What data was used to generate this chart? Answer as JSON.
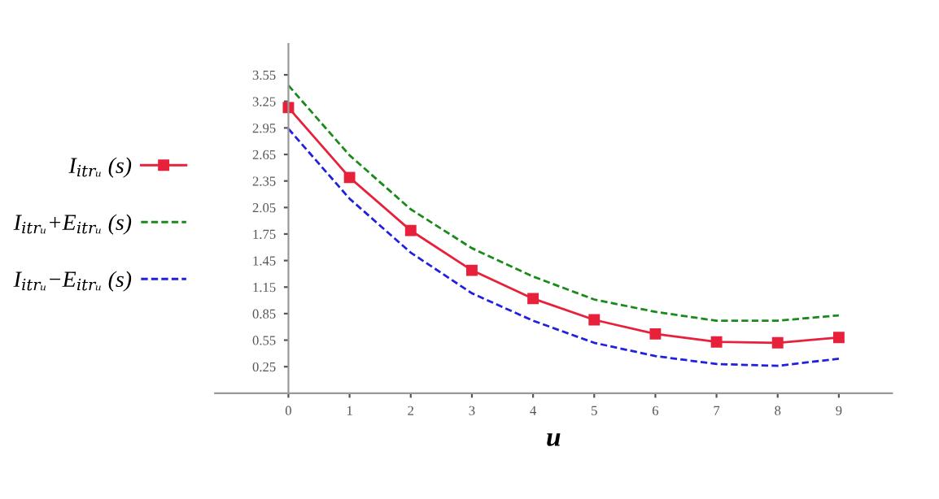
{
  "chart_data": {
    "type": "line",
    "xlabel": "u",
    "legend": "left",
    "grid": false,
    "x": [
      0,
      1,
      2,
      3,
      4,
      5,
      6,
      7,
      8,
      9
    ],
    "xlim": [
      -1.2,
      9.87
    ],
    "xticks": [
      0,
      1,
      2,
      3,
      4,
      5,
      6,
      7,
      8,
      9
    ],
    "ylim": [
      -0.05,
      3.9
    ],
    "yticks": [
      0.25,
      0.55,
      0.85,
      1.15,
      1.45,
      1.75,
      2.05,
      2.35,
      2.65,
      2.95,
      3.25,
      3.55
    ],
    "series": [
      {
        "name": "I$_{itrᵤ}$ (s)",
        "color": "#e8213a",
        "marker": "square",
        "line_style": "solid",
        "values": [
          3.18,
          2.39,
          1.79,
          1.34,
          1.02,
          0.78,
          0.62,
          0.53,
          0.52,
          0.58
        ]
      },
      {
        "name": "I$_{itrᵤ}$+E$_{itrᵤ}$ (s)",
        "color": "#1a8a1a",
        "marker": "none",
        "line_style": "dashed",
        "values": [
          3.43,
          2.64,
          2.03,
          1.59,
          1.27,
          1.01,
          0.87,
          0.77,
          0.77,
          0.83
        ]
      },
      {
        "name": "I$_{itrᵤ}$−E$_{itrᵤ}$ (s)",
        "color": "#2020e0",
        "marker": "none",
        "line_style": "dashed",
        "values": [
          2.94,
          2.15,
          1.54,
          1.08,
          0.77,
          0.52,
          0.37,
          0.28,
          0.26,
          0.34
        ]
      }
    ]
  }
}
